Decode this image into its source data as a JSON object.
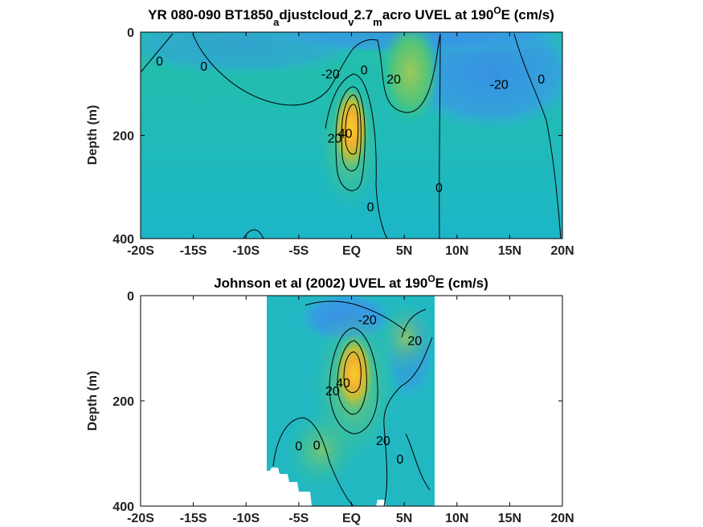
{
  "chart_data": [
    {
      "type": "heatmap",
      "title": "YR 080-090 BT1850",
      "title_sub_parts": [
        [
          "a",
          "djustcloud"
        ],
        [
          "v",
          "2.7"
        ],
        [
          "m",
          "acro UVEL at 190"
        ]
      ],
      "title_sup": "O",
      "title_end": "E (cm/s)",
      "ylabel": "Depth (m)",
      "xlabel": "",
      "xlim": [
        -20,
        20
      ],
      "ylim": [
        400,
        0
      ],
      "xticks": [
        -20,
        -15,
        -10,
        -5,
        0,
        5,
        10,
        15,
        20
      ],
      "xtick_labels": [
        "-20S",
        "-15S",
        "-10S",
        "-5S",
        "EQ",
        "5N",
        "10N",
        "15N",
        "20N"
      ],
      "yticks": [
        0,
        200,
        400
      ],
      "ytick_labels": [
        "0",
        "200",
        "400"
      ],
      "data_extent_x": [
        -20,
        20
      ],
      "colormap": [
        "#3b5fd9",
        "#2f8fe6",
        "#1fb6c8",
        "#2cc39a",
        "#7ccb62",
        "#c8c23a",
        "#f2b02f",
        "#f7d32a"
      ],
      "color_range": [
        -40,
        60
      ],
      "features": [
        {
          "name": "EUC core",
          "x": 0,
          "y": 160,
          "value": 55
        },
        {
          "name": "NECC",
          "x": 6,
          "y": 80,
          "value": 25
        },
        {
          "name": "SEC north",
          "x": 13,
          "y": 60,
          "value": -30
        },
        {
          "name": "SEC south",
          "x": -3,
          "y": 40,
          "value": -25
        }
      ],
      "contour_labels": [
        {
          "text": "0",
          "x": -18.2,
          "y": 55
        },
        {
          "text": "0",
          "x": -14,
          "y": 65
        },
        {
          "text": "-20",
          "x": -2,
          "y": 80
        },
        {
          "text": "0",
          "x": 1.2,
          "y": 72
        },
        {
          "text": "20",
          "x": 4,
          "y": 90
        },
        {
          "text": "-20",
          "x": 14,
          "y": 100
        },
        {
          "text": "0",
          "x": 18,
          "y": 90
        },
        {
          "text": "20",
          "x": -1.6,
          "y": 205
        },
        {
          "text": "40",
          "x": -0.6,
          "y": 195
        },
        {
          "text": "0",
          "x": 8.3,
          "y": 300
        },
        {
          "text": "0",
          "x": 1.8,
          "y": 338
        }
      ]
    },
    {
      "type": "heatmap",
      "title": "Johnson et al (2002) UVEL at 190",
      "title_sup": "O",
      "title_end": "E (cm/s)",
      "ylabel": "Depth (m)",
      "xlabel": "",
      "xlim": [
        -20,
        20
      ],
      "ylim": [
        400,
        0
      ],
      "xticks": [
        -20,
        -15,
        -10,
        -5,
        0,
        5,
        10,
        15,
        20
      ],
      "xtick_labels": [
        "-20S",
        "-15S",
        "-10S",
        "-5S",
        "EQ",
        "5N",
        "10N",
        "15N",
        "20N"
      ],
      "yticks": [
        0,
        200,
        400
      ],
      "ytick_labels": [
        "0",
        "200",
        "400"
      ],
      "data_extent_x": [
        -8,
        8
      ],
      "colormap": [
        "#3b5fd9",
        "#2f8fe6",
        "#1fb6c8",
        "#2cc39a",
        "#7ccb62",
        "#c8c23a",
        "#f2b02f",
        "#f7d32a"
      ],
      "color_range": [
        -40,
        60
      ],
      "features": [
        {
          "name": "EUC core",
          "x": 0.5,
          "y": 150,
          "value": 55
        },
        {
          "name": "North flank",
          "x": 5.5,
          "y": 60,
          "value": 20
        },
        {
          "name": "Surface west flow",
          "x": -1,
          "y": 30,
          "value": -25
        }
      ],
      "contour_labels": [
        {
          "text": "-20",
          "x": 1.5,
          "y": 45
        },
        {
          "text": "20",
          "x": 6,
          "y": 85
        },
        {
          "text": "20",
          "x": -1.8,
          "y": 180
        },
        {
          "text": "40",
          "x": -0.8,
          "y": 165
        },
        {
          "text": "0",
          "x": -5,
          "y": 285
        },
        {
          "text": "0",
          "x": -3.3,
          "y": 283
        },
        {
          "text": "20",
          "x": 3,
          "y": 275
        },
        {
          "text": "0",
          "x": 4.6,
          "y": 310
        }
      ]
    }
  ]
}
